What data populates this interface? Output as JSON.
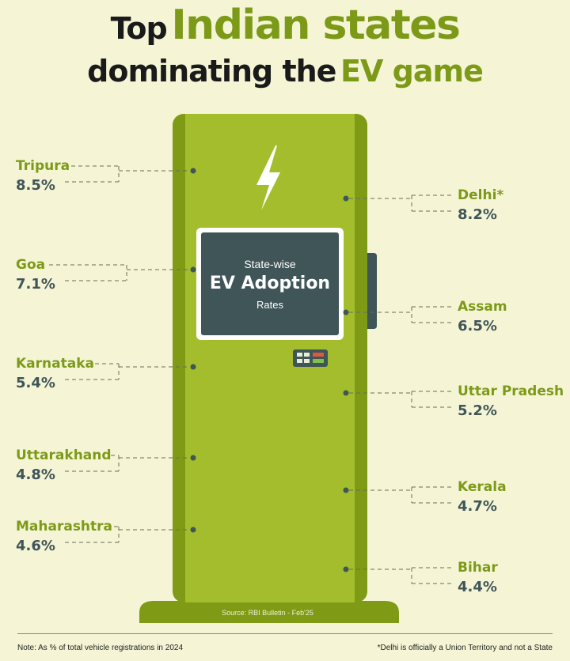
{
  "title": {
    "line1_prefix": "Top",
    "line1_highlight": "Indian states",
    "line2_prefix": "dominating the",
    "line2_highlight": "EV game"
  },
  "screen": {
    "line1": "State-wise",
    "line2": "EV Adoption",
    "line3": "Rates"
  },
  "source": "Source: RBI Bulletin - Feb'25",
  "notes": {
    "left": "Note: As % of total vehicle registrations in 2024",
    "right": "*Delhi is officially a Union Territory and not a State"
  },
  "icons": {
    "bolt": "lightning-bolt-icon",
    "keypad": "keypad-icon"
  },
  "colors": {
    "background": "#f5f5d6",
    "charger_body": "#a3bd2c",
    "charger_edge": "#7f9a14",
    "screen": "#3f5558",
    "state_label": "#7c9a18",
    "value_label": "#3f5558"
  },
  "chart_data": {
    "type": "bar",
    "unit": "%",
    "series": [
      {
        "values": [
          8.5,
          8.2,
          7.1,
          6.5,
          5.4,
          5.2,
          4.8,
          4.7,
          4.6,
          4.4
        ],
        "labels": [
          "8.5%",
          "8.2%",
          "7.1%",
          "6.5%",
          "5.4%",
          "5.2%",
          "4.8%",
          "4.7%",
          "4.6%",
          "4.4%"
        ]
      }
    ],
    "categories": [
      "Tripura",
      "Delhi*",
      "Goa",
      "Assam",
      "Karnataka",
      "Uttar Pradesh",
      "Uttarakhand",
      "Kerala",
      "Maharashtra",
      "Bihar"
    ]
  }
}
